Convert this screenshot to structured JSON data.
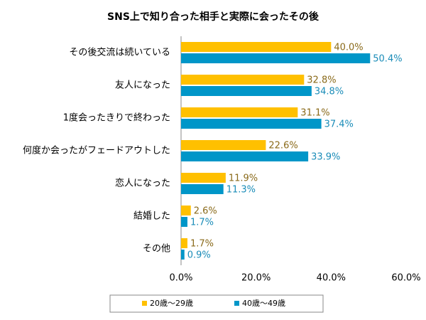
{
  "chart_data": {
    "type": "bar",
    "orientation": "horizontal",
    "title": "SNS上で知り合った相手と実際に会ったその後",
    "categories": [
      "その後交流は続いている",
      "友人になった",
      "1度会ったきりで終わった",
      "何度か会ったがフェードアウトした",
      "恋人になった",
      "結婚した",
      "その他"
    ],
    "series": [
      {
        "name": "20歳～29歳",
        "color": "#ffc000",
        "values": [
          40.0,
          32.8,
          31.1,
          22.6,
          11.9,
          2.6,
          1.7
        ],
        "value_labels": [
          "40.0%",
          "32.8%",
          "31.1%",
          "22.6%",
          "11.9%",
          "2.6%",
          "1.7%"
        ]
      },
      {
        "name": "40歳～49歳",
        "color": "#0096c8",
        "values": [
          50.4,
          34.8,
          37.4,
          33.9,
          11.3,
          1.7,
          0.9
        ],
        "value_labels": [
          "50.4%",
          "34.8%",
          "37.4%",
          "33.9%",
          "11.3%",
          "1.7%",
          "0.9%"
        ]
      }
    ],
    "xlim": [
      0,
      60
    ],
    "xticks": [
      {
        "value": 0,
        "label": "0.0%"
      },
      {
        "value": 20,
        "label": "20.0%"
      },
      {
        "value": 40,
        "label": "40.0%"
      },
      {
        "value": 60,
        "label": "60.0%"
      }
    ],
    "legend": "bottom"
  }
}
